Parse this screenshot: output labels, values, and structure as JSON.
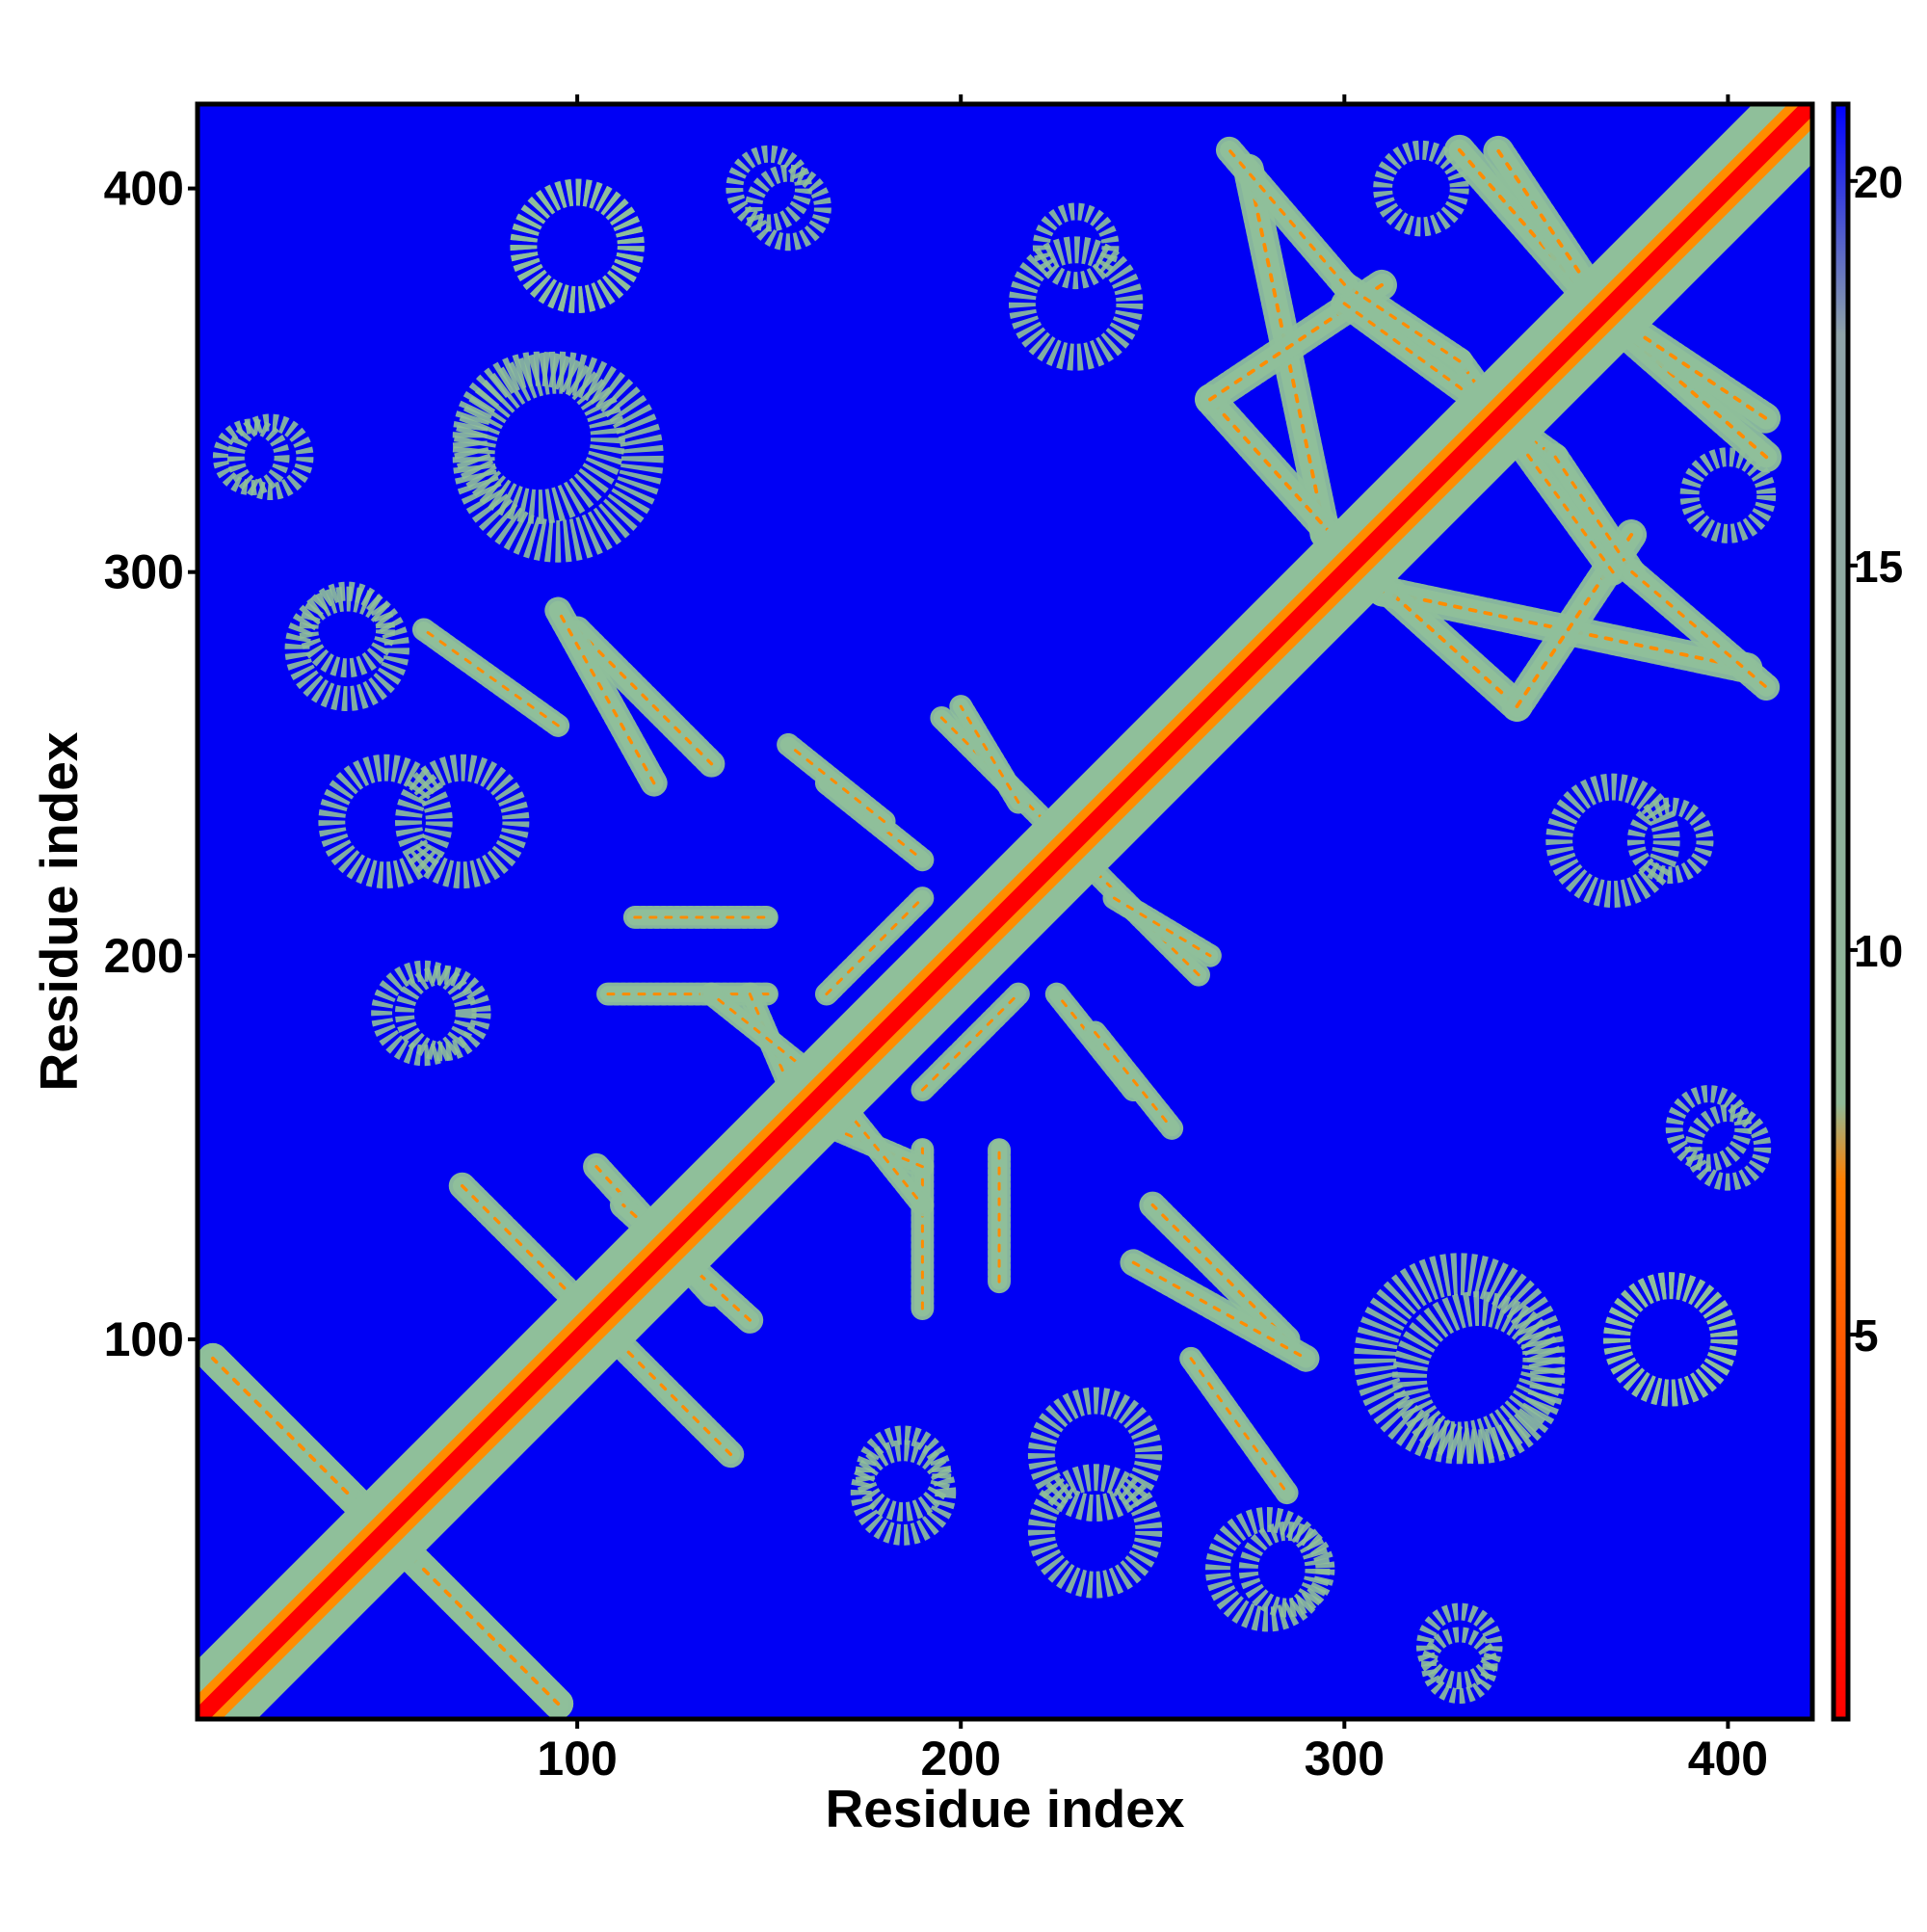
{
  "chart_data": {
    "type": "heatmap",
    "title": "",
    "xlabel": "Residue index",
    "ylabel": "Residue index",
    "xlim": [
      1,
      422
    ],
    "ylim": [
      1,
      422
    ],
    "xticks": [
      100,
      200,
      300,
      400
    ],
    "yticks": [
      100,
      200,
      300,
      400
    ],
    "grid": false,
    "colorbar": {
      "range": [
        0,
        21
      ],
      "ticks": [
        5,
        10,
        15,
        20
      ],
      "colors": [
        "#ff0000",
        "#ff7f00",
        "#8fb996",
        "#8fa3a8",
        "#0000ff"
      ],
      "stops": [
        0,
        7,
        8,
        18,
        21
      ]
    },
    "colors": {
      "background_value": "#0000f5",
      "near": "#ff0000",
      "mid": "#ff8c00",
      "contact": "#8fbf9a",
      "far": "#0000f5"
    },
    "description_of_values": "symmetric residue-residue distance map (Å), diagonal ≈ 0",
    "diagonal_band": {
      "from": 1,
      "to": 422,
      "width": 10
    },
    "segments": [
      {
        "from": [
          5,
          95
        ],
        "to": [
          60,
          40
        ],
        "width": 8
      },
      {
        "from": [
          60,
          40
        ],
        "to": [
          95,
          5
        ],
        "width": 8
      },
      {
        "from": [
          70,
          140
        ],
        "to": [
          110,
          100
        ],
        "width": 7
      },
      {
        "from": [
          100,
          285
        ],
        "to": [
          135,
          250
        ],
        "width": 7
      },
      {
        "from": [
          105,
          145
        ],
        "to": [
          135,
          112
        ],
        "width": 7
      },
      {
        "from": [
          108,
          190
        ],
        "to": [
          150,
          190
        ],
        "width": 6
      },
      {
        "from": [
          115,
          210
        ],
        "to": [
          150,
          210
        ],
        "width": 6
      },
      {
        "from": [
          165,
          245
        ],
        "to": [
          190,
          225
        ],
        "width": 6
      },
      {
        "from": [
          195,
          262
        ],
        "to": [
          225,
          232
        ],
        "width": 6
      },
      {
        "from": [
          145,
          190
        ],
        "to": [
          160,
          155
        ],
        "width": 6
      },
      {
        "from": [
          170,
          160
        ],
        "to": [
          190,
          135
        ],
        "width": 6
      },
      {
        "from": [
          190,
          165
        ],
        "to": [
          215,
          190
        ],
        "width": 6
      },
      {
        "from": [
          240,
          215
        ],
        "to": [
          265,
          200
        ],
        "width": 6
      },
      {
        "from": [
          235,
          180
        ],
        "to": [
          255,
          155
        ],
        "width": 6
      },
      {
        "from": [
          245,
          120
        ],
        "to": [
          290,
          95
        ],
        "width": 7
      },
      {
        "from": [
          260,
          95
        ],
        "to": [
          285,
          60
        ],
        "width": 6
      },
      {
        "from": [
          275,
          405
        ],
        "to": [
          295,
          310
        ],
        "width": 8
      },
      {
        "from": [
          295,
          310
        ],
        "to": [
          345,
          265
        ],
        "width": 8
      },
      {
        "from": [
          345,
          265
        ],
        "to": [
          375,
          310
        ],
        "width": 8
      },
      {
        "from": [
          330,
          410
        ],
        "to": [
          365,
          370
        ],
        "width": 8
      },
      {
        "from": [
          365,
          370
        ],
        "to": [
          410,
          340
        ],
        "width": 8
      },
      {
        "from": [
          300,
          370
        ],
        "to": [
          355,
          330
        ],
        "width": 7
      },
      {
        "from": [
          355,
          330
        ],
        "to": [
          375,
          300
        ],
        "width": 7
      },
      {
        "from": [
          375,
          300
        ],
        "to": [
          410,
          270
        ],
        "width": 7
      }
    ],
    "blobs": [
      {
        "center": [
          90,
          335
        ],
        "radius": 18
      },
      {
        "center": [
          100,
          385
        ],
        "radius": 14
      },
      {
        "center": [
          150,
          400
        ],
        "radius": 9
      },
      {
        "center": [
          40,
          285
        ],
        "radius": 10
      },
      {
        "center": [
          50,
          235
        ],
        "radius": 14
      },
      {
        "center": [
          60,
          185
        ],
        "radius": 11
      },
      {
        "center": [
          330,
          95
        ],
        "radius": 22
      },
      {
        "center": [
          385,
          100
        ],
        "radius": 14
      },
      {
        "center": [
          280,
          40
        ],
        "radius": 13
      },
      {
        "center": [
          330,
          20
        ],
        "radius": 9
      },
      {
        "center": [
          370,
          230
        ],
        "radius": 14
      },
      {
        "center": [
          395,
          155
        ],
        "radius": 9
      },
      {
        "center": [
          235,
          70
        ],
        "radius": 14
      },
      {
        "center": [
          185,
          65
        ],
        "radius": 10
      },
      {
        "center": [
          230,
          385
        ],
        "radius": 9
      },
      {
        "center": [
          400,
          320
        ],
        "radius": 10
      },
      {
        "center": [
          15,
          330
        ],
        "radius": 8
      }
    ]
  }
}
